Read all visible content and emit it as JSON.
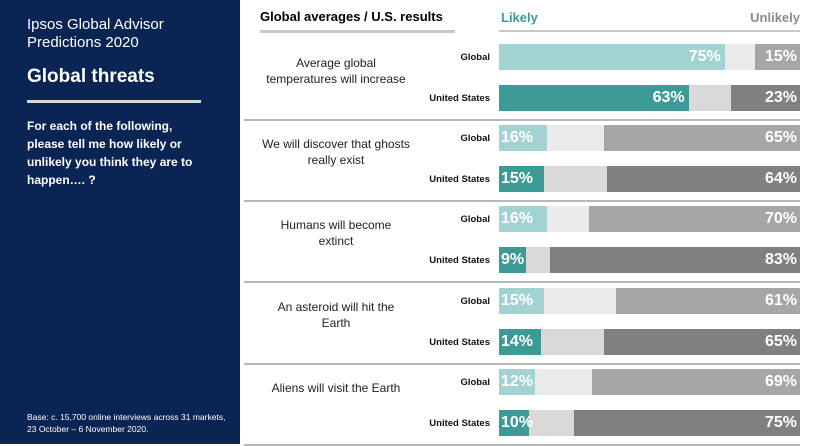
{
  "sidebar": {
    "title": "Ipsos Global Advisor Predictions 2020",
    "heading": "Global threats",
    "question": "For each of the following, please tell me how likely or unlikely you think they are to happen…. ?",
    "base": "Base: c. 15,700 online interviews across 31 markets,  23 October – 6 November 2020."
  },
  "header": {
    "title": "Global averages / U.S. results",
    "likely": "Likely",
    "unlikely": "Unlikely"
  },
  "colors": {
    "sidebar": "#0a2453",
    "likely_global": "#a3d2d2",
    "likely_us": "#3e9a96",
    "middle_global": "#ebebeb",
    "middle_us": "#d9d9d9",
    "unlikely_global": "#a6a6a6",
    "unlikely_us": "#808080"
  },
  "chart_data": {
    "type": "bar",
    "orientation": "horizontal",
    "stacked": true,
    "title": "Global averages / U.S. results",
    "series_names": [
      "Likely",
      "Unlikely"
    ],
    "groups": [
      {
        "label": "Average global temperatures will increase",
        "rows": [
          {
            "region": "Global",
            "likely": 75,
            "unlikely": 15
          },
          {
            "region": "United States",
            "likely": 63,
            "unlikely": 23
          }
        ]
      },
      {
        "label": "We will discover that ghosts really exist",
        "rows": [
          {
            "region": "Global",
            "likely": 16,
            "unlikely": 65
          },
          {
            "region": "United States",
            "likely": 15,
            "unlikely": 64
          }
        ]
      },
      {
        "label": "Humans will become extinct",
        "rows": [
          {
            "region": "Global",
            "likely": 16,
            "unlikely": 70
          },
          {
            "region": "United States",
            "likely": 9,
            "unlikely": 83
          }
        ]
      },
      {
        "label": "An asteroid will hit the Earth",
        "rows": [
          {
            "region": "Global",
            "likely": 15,
            "unlikely": 61
          },
          {
            "region": "United States",
            "likely": 14,
            "unlikely": 65
          }
        ]
      },
      {
        "label": "Aliens will visit the Earth",
        "rows": [
          {
            "region": "Global",
            "likely": 12,
            "unlikely": 69
          },
          {
            "region": "United States",
            "likely": 10,
            "unlikely": 75
          }
        ]
      }
    ]
  }
}
